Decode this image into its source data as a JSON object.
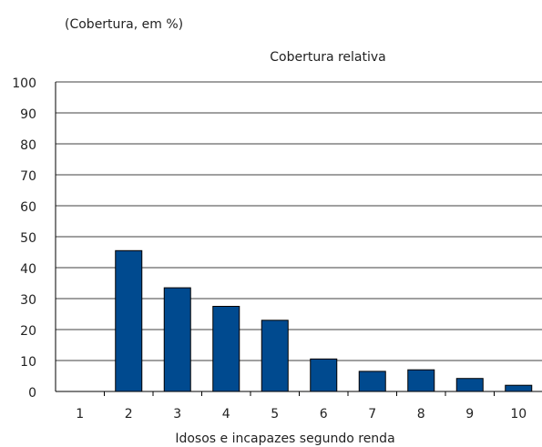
{
  "chart_data": {
    "type": "bar",
    "unit_note": "(Cobertura, em %)",
    "title": "Cobertura relativa",
    "xlabel": "Idosos e incapazes segundo renda",
    "ylabel": "",
    "categories": [
      "1",
      "2",
      "3",
      "4",
      "5",
      "6",
      "7",
      "8",
      "9",
      "10"
    ],
    "series": [
      {
        "values": [
          0,
          45.5,
          33.5,
          27.5,
          23.0,
          10.5,
          6.5,
          7.0,
          4.2,
          2.0
        ]
      }
    ],
    "ylim": [
      0,
      100
    ],
    "yticks": [
      "0",
      "10",
      "20",
      "30",
      "40",
      "50",
      "60",
      "70",
      "80",
      "90",
      "100"
    ],
    "grid": true,
    "bar_color": "#004a8f",
    "grid_color": "#000000"
  }
}
